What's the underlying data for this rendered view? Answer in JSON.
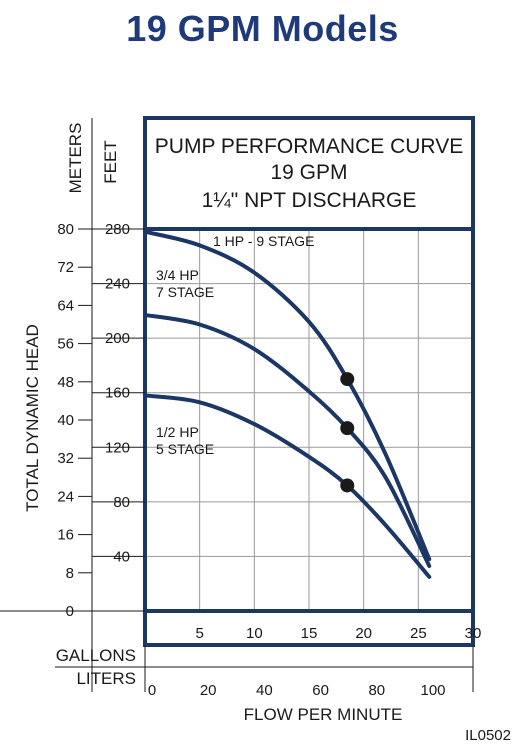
{
  "heading": "19 GPM Models",
  "colors": {
    "brand": "#1f3a7a",
    "curve": "#1c3766",
    "grid": "#9a9a9a",
    "point": "#1a1a1a"
  },
  "footer_code": "IL0502",
  "chart_data": {
    "type": "line",
    "title_lines": [
      "PUMP PERFORMANCE CURVE",
      "19 GPM",
      "1¼\" NPT DISCHARGE"
    ],
    "xlabel": "FLOW PER MINUTE",
    "ylabel": "TOTAL DYNAMIC HEAD",
    "x_units": [
      "GALLONS",
      "LITERS"
    ],
    "y_units": [
      "METERS",
      "FEET"
    ],
    "xlim": [
      0,
      30
    ],
    "ylim": [
      0,
      280
    ],
    "x_ticks_gallons": [
      5,
      10,
      15,
      20,
      25,
      30
    ],
    "x_ticks_liters": [
      0,
      20,
      40,
      60,
      80,
      100
    ],
    "y_ticks_feet": [
      40,
      80,
      120,
      160,
      200,
      240,
      280
    ],
    "y_ticks_meters": [
      0,
      8,
      16,
      24,
      32,
      40,
      48,
      56,
      64,
      72,
      80
    ],
    "grid": true,
    "series": [
      {
        "name": "1 HP - 9 STAGE",
        "x": [
          0,
          5,
          10,
          15,
          18.5,
          22,
          26
        ],
        "y": [
          278,
          268,
          248,
          212,
          170,
          115,
          38
        ]
      },
      {
        "name": "3/4 HP 7 STAGE",
        "x": [
          0,
          5,
          10,
          15,
          18.5,
          22,
          26
        ],
        "y": [
          217,
          210,
          192,
          161,
          134,
          98,
          33
        ]
      },
      {
        "name": "1/2 HP 5 STAGE",
        "x": [
          0,
          5,
          10,
          15,
          18.5,
          22,
          26
        ],
        "y": [
          158,
          153,
          137,
          113,
          92,
          63,
          25
        ]
      }
    ],
    "marked_points": [
      {
        "x": 18.5,
        "y": 170
      },
      {
        "x": 18.5,
        "y": 134
      },
      {
        "x": 18.5,
        "y": 92
      }
    ],
    "curve_labels": [
      {
        "series": 0,
        "lines": [
          "1 HP - 9 STAGE"
        ]
      },
      {
        "series": 1,
        "lines": [
          "3/4 HP",
          "7 STAGE"
        ]
      },
      {
        "series": 2,
        "lines": [
          "1/2 HP",
          "5 STAGE"
        ]
      }
    ]
  }
}
